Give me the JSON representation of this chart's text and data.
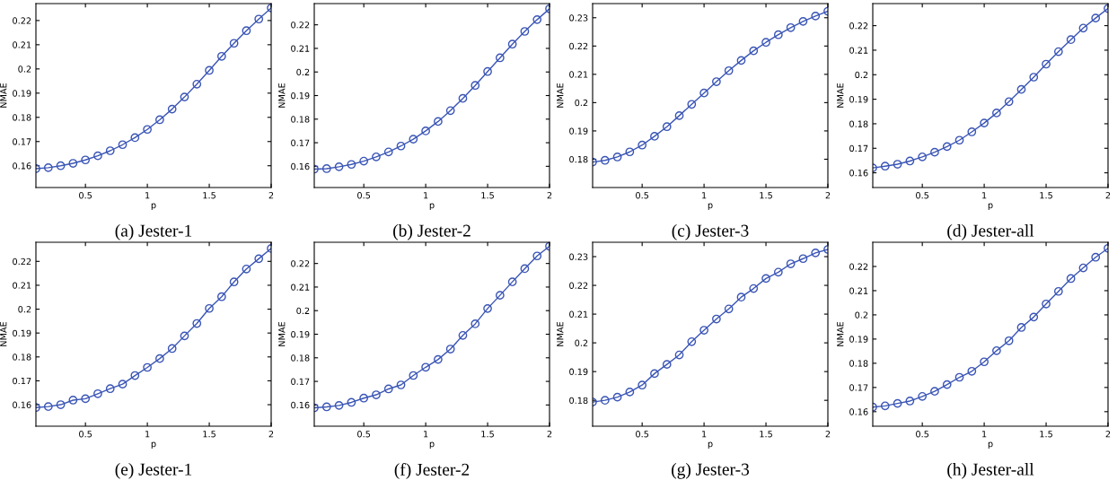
{
  "chart_data": [
    {
      "type": "line",
      "title": "(a) Jester-1",
      "xlabel": "p",
      "ylabel": "NMAE",
      "x": [
        0.1,
        0.2,
        0.3,
        0.4,
        0.5,
        0.6,
        0.7,
        0.8,
        0.9,
        1.0,
        1.1,
        1.2,
        1.3,
        1.4,
        1.5,
        1.6,
        1.7,
        1.8,
        1.9,
        2.0
      ],
      "series": [
        {
          "color": "#3a55b5",
          "values": [
            0.1588,
            0.1592,
            0.16,
            0.161,
            0.1624,
            0.1641,
            0.1662,
            0.1687,
            0.1716,
            0.175,
            0.179,
            0.1834,
            0.1884,
            0.1937,
            0.1994,
            0.2052,
            0.2106,
            0.2158,
            0.2206,
            0.2252
          ]
        }
      ],
      "xlim": [
        0.1,
        2
      ],
      "xticks": [
        0.5,
        1,
        1.5,
        2
      ],
      "ylim": [
        0.151,
        0.227
      ],
      "yticks": [
        0.16,
        0.17,
        0.18,
        0.19,
        0.2,
        0.21,
        0.22
      ],
      "marker": "circle",
      "grid": false
    },
    {
      "type": "line",
      "title": "(b) Jester-2",
      "xlabel": "p",
      "ylabel": "NMAE",
      "x": [
        0.1,
        0.2,
        0.3,
        0.4,
        0.5,
        0.6,
        0.7,
        0.8,
        0.9,
        1.0,
        1.1,
        1.2,
        1.3,
        1.4,
        1.5,
        1.6,
        1.7,
        1.8,
        1.9,
        2.0
      ],
      "series": [
        {
          "color": "#3a55b5",
          "values": [
            0.1588,
            0.159,
            0.1598,
            0.1608,
            0.1622,
            0.164,
            0.1661,
            0.1686,
            0.1715,
            0.175,
            0.179,
            0.1836,
            0.1888,
            0.1943,
            0.2002,
            0.206,
            0.2118,
            0.2172,
            0.2222,
            0.2268
          ]
        }
      ],
      "xlim": [
        0.1,
        2
      ],
      "xticks": [
        0.5,
        1,
        1.5,
        2
      ],
      "ylim": [
        0.151,
        0.229
      ],
      "yticks": [
        0.16,
        0.17,
        0.18,
        0.19,
        0.2,
        0.21,
        0.22
      ],
      "marker": "circle",
      "grid": false
    },
    {
      "type": "line",
      "title": "(c) Jester-3",
      "xlabel": "p",
      "ylabel": "NMAE",
      "x": [
        0.1,
        0.2,
        0.3,
        0.4,
        0.5,
        0.6,
        0.7,
        0.8,
        0.9,
        1.0,
        1.1,
        1.2,
        1.3,
        1.4,
        1.5,
        1.6,
        1.7,
        1.8,
        1.9,
        2.0
      ],
      "series": [
        {
          "color": "#3a55b5",
          "values": [
            0.179,
            0.1796,
            0.1808,
            0.1826,
            0.185,
            0.1881,
            0.1915,
            0.1954,
            0.1994,
            0.2034,
            0.2074,
            0.2113,
            0.2149,
            0.2183,
            0.2213,
            0.224,
            0.2265,
            0.2287,
            0.2306,
            0.2323
          ]
        }
      ],
      "xlim": [
        0.1,
        2
      ],
      "xticks": [
        0.5,
        1,
        1.5,
        2
      ],
      "ylim": [
        0.17,
        0.235
      ],
      "yticks": [
        0.18,
        0.19,
        0.2,
        0.21,
        0.22,
        0.23
      ],
      "marker": "circle",
      "grid": false
    },
    {
      "type": "line",
      "title": "(d) Jester-all",
      "xlabel": "p",
      "ylabel": "NMAE",
      "x": [
        0.1,
        0.2,
        0.3,
        0.4,
        0.5,
        0.6,
        0.7,
        0.8,
        0.9,
        1.0,
        1.1,
        1.2,
        1.3,
        1.4,
        1.5,
        1.6,
        1.7,
        1.8,
        1.9,
        2.0
      ],
      "series": [
        {
          "color": "#3a55b5",
          "values": [
            0.162,
            0.1627,
            0.1635,
            0.1648,
            0.1665,
            0.1684,
            0.1707,
            0.1733,
            0.1767,
            0.1803,
            0.1844,
            0.189,
            0.194,
            0.199,
            0.2043,
            0.2094,
            0.2143,
            0.219,
            0.2231,
            0.227
          ]
        }
      ],
      "xlim": [
        0.1,
        2
      ],
      "xticks": [
        0.5,
        1,
        1.5,
        2
      ],
      "ylim": [
        0.154,
        0.229
      ],
      "yticks": [
        0.16,
        0.17,
        0.18,
        0.19,
        0.2,
        0.21,
        0.22
      ],
      "marker": "circle",
      "grid": false
    },
    {
      "type": "line",
      "title": "(e) Jester-1",
      "xlabel": "p",
      "ylabel": "NMAE",
      "x": [
        0.1,
        0.2,
        0.3,
        0.4,
        0.5,
        0.6,
        0.7,
        0.8,
        0.9,
        1.0,
        1.1,
        1.2,
        1.3,
        1.4,
        1.5,
        1.6,
        1.7,
        1.8,
        1.9,
        2.0
      ],
      "series": [
        {
          "color": "#3a55b5",
          "values": [
            0.1588,
            0.1592,
            0.16,
            0.1619,
            0.1625,
            0.1646,
            0.1667,
            0.1686,
            0.1722,
            0.1756,
            0.1793,
            0.1835,
            0.1888,
            0.194,
            0.2003,
            0.2052,
            0.2114,
            0.2168,
            0.2211,
            0.2254
          ]
        }
      ],
      "xlim": [
        0.1,
        2
      ],
      "xticks": [
        0.5,
        1,
        1.5,
        2
      ],
      "ylim": [
        0.151,
        0.228
      ],
      "yticks": [
        0.16,
        0.17,
        0.18,
        0.19,
        0.2,
        0.21,
        0.22
      ],
      "marker": "circle",
      "grid": false
    },
    {
      "type": "line",
      "title": "(f) Jester-2",
      "xlabel": "p",
      "ylabel": "NMAE",
      "x": [
        0.1,
        0.2,
        0.3,
        0.4,
        0.5,
        0.6,
        0.7,
        0.8,
        0.9,
        1.0,
        1.1,
        1.2,
        1.3,
        1.4,
        1.5,
        1.6,
        1.7,
        1.8,
        1.9,
        2.0
      ],
      "series": [
        {
          "color": "#3a55b5",
          "values": [
            0.1588,
            0.1592,
            0.1598,
            0.1611,
            0.1629,
            0.1643,
            0.1668,
            0.1685,
            0.1725,
            0.176,
            0.1793,
            0.1837,
            0.1895,
            0.1944,
            0.2009,
            0.2065,
            0.2122,
            0.2178,
            0.2232,
            0.2273
          ]
        }
      ],
      "xlim": [
        0.1,
        2
      ],
      "xticks": [
        0.5,
        1,
        1.5,
        2
      ],
      "ylim": [
        0.151,
        0.229
      ],
      "yticks": [
        0.16,
        0.17,
        0.18,
        0.19,
        0.2,
        0.21,
        0.22
      ],
      "marker": "circle",
      "grid": false
    },
    {
      "type": "line",
      "title": "(g) Jester-3",
      "xlabel": "p",
      "ylabel": "NMAE",
      "x": [
        0.1,
        0.2,
        0.3,
        0.4,
        0.5,
        0.6,
        0.7,
        0.8,
        0.9,
        1.0,
        1.1,
        1.2,
        1.3,
        1.4,
        1.5,
        1.6,
        1.7,
        1.8,
        1.9,
        2.0
      ],
      "series": [
        {
          "color": "#3a55b5",
          "values": [
            0.1794,
            0.18,
            0.1811,
            0.1829,
            0.1853,
            0.1893,
            0.1925,
            0.1958,
            0.2004,
            0.2044,
            0.2083,
            0.2118,
            0.2159,
            0.2189,
            0.2224,
            0.2246,
            0.2275,
            0.2293,
            0.2313,
            0.2325
          ]
        }
      ],
      "xlim": [
        0.1,
        2
      ],
      "xticks": [
        0.5,
        1,
        1.5,
        2
      ],
      "ylim": [
        0.171,
        0.235
      ],
      "yticks": [
        0.18,
        0.19,
        0.2,
        0.21,
        0.22,
        0.23
      ],
      "marker": "circle",
      "grid": false
    },
    {
      "type": "line",
      "title": "(h) Jester-all",
      "xlabel": "p",
      "ylabel": "NMAE",
      "x": [
        0.1,
        0.2,
        0.3,
        0.4,
        0.5,
        0.6,
        0.7,
        0.8,
        0.9,
        1.0,
        1.1,
        1.2,
        1.3,
        1.4,
        1.5,
        1.6,
        1.7,
        1.8,
        1.9,
        2.0
      ],
      "series": [
        {
          "color": "#3a55b5",
          "values": [
            0.1619,
            0.1624,
            0.1634,
            0.1644,
            0.1663,
            0.1684,
            0.1712,
            0.1742,
            0.1767,
            0.1806,
            0.1852,
            0.1893,
            0.1948,
            0.1991,
            0.2045,
            0.2097,
            0.215,
            0.2194,
            0.2238,
            0.2275
          ]
        }
      ],
      "xlim": [
        0.1,
        2
      ],
      "xticks": [
        0.5,
        1,
        1.5,
        2
      ],
      "ylim": [
        0.154,
        0.23
      ],
      "yticks": [
        0.16,
        0.17,
        0.18,
        0.19,
        0.2,
        0.21,
        0.22
      ],
      "marker": "circle",
      "grid": false
    }
  ]
}
